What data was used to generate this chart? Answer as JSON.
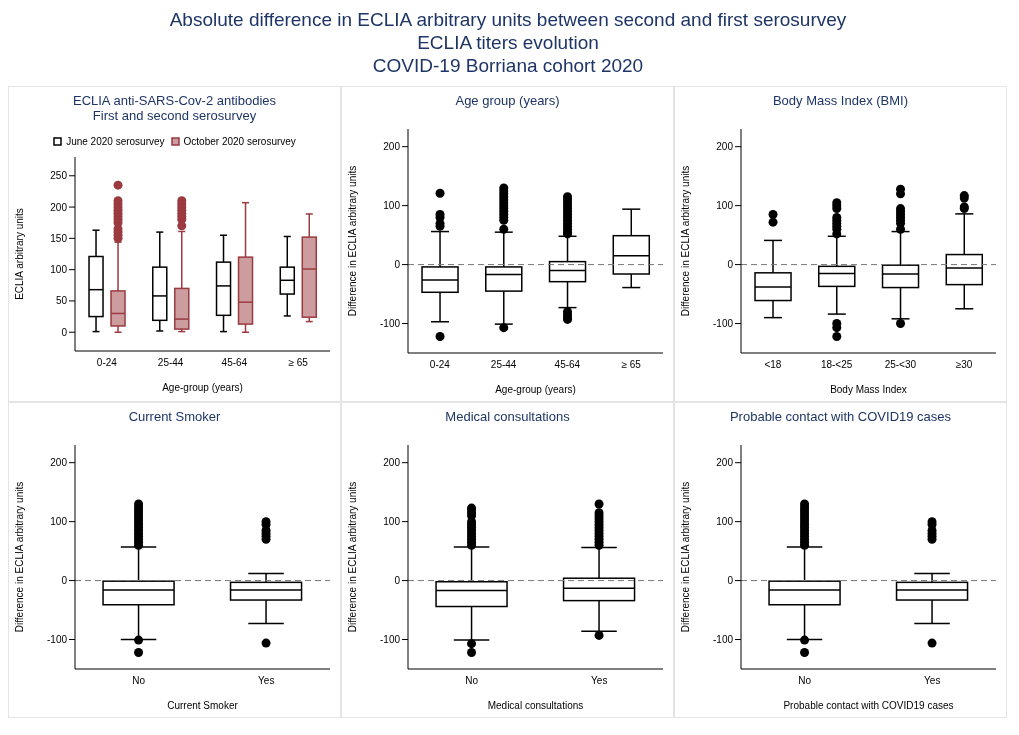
{
  "chart_data": [
    {
      "type": "box",
      "title": "ECLIA anti-SARS-Cov-2 antibodies",
      "subtitle": "First and second serosurvey",
      "annotations": [
        "Absolute difference in ECLIA arbitrary units between second and first serosurvey",
        "ECLIA titers evolution",
        "COVID-19 Borriana cohort 2020"
      ],
      "xlabel": "Age-group (years)",
      "ylabel": "ECLIA arbitrary units",
      "categories": [
        "0-24",
        "25-44",
        "45-64",
        "≥ 65"
      ],
      "ylim": [
        -30,
        280
      ],
      "yticks": [
        0,
        50,
        100,
        150,
        200,
        250
      ],
      "legend": "top",
      "grid": false,
      "series": [
        {
          "name": "June 2020 serosurvey",
          "color": "#000000",
          "boxes": [
            {
              "low": 1,
              "q1": 25,
              "median": 68,
              "q3": 121,
              "high": 163
            },
            {
              "low": 2,
              "q1": 19,
              "median": 58,
              "q3": 104,
              "high": 160
            },
            {
              "low": 1,
              "q1": 27,
              "median": 74,
              "q3": 112,
              "high": 155
            },
            {
              "low": 26,
              "q1": 61,
              "median": 83,
              "q3": 104,
              "high": 153
            }
          ]
        },
        {
          "name": "October 2020 serosurvey",
          "color": "#9b3a40",
          "boxes": [
            {
              "low": 0,
              "q1": 10,
              "median": 30,
              "q3": 66,
              "high": 144,
              "outliers": [
                150,
                155,
                160,
                165,
                175,
                180,
                185,
                190,
                195,
                200,
                205,
                210,
                235
              ]
            },
            {
              "low": 1,
              "q1": 5,
              "median": 21,
              "q3": 70,
              "high": 161,
              "outliers": [
                170,
                180,
                185,
                190,
                195,
                200,
                205,
                210
              ]
            },
            {
              "low": 0,
              "q1": 13,
              "median": 48,
              "q3": 120,
              "high": 207
            },
            {
              "low": 17,
              "q1": 24,
              "median": 101,
              "q3": 152,
              "high": 189
            }
          ]
        }
      ]
    },
    {
      "type": "box",
      "title": "Age group (years)",
      "xlabel": "Age-group (years)",
      "ylabel": "Difference in ECLIA arbitrary units",
      "categories": [
        "0-24",
        "25-44",
        "45-64",
        "≥ 65"
      ],
      "ylim": [
        -150,
        230
      ],
      "yticks": [
        -100,
        0,
        100,
        200
      ],
      "grid": false,
      "ref_lines": [
        {
          "axis": "y",
          "value": 0,
          "line_style": "dashed"
        }
      ],
      "series": [
        {
          "color": "#000000",
          "boxes": [
            {
              "low": -97,
              "q1": -47,
              "median": -26,
              "q3": -4,
              "high": 56,
              "outliers": [
                65,
                70,
                80,
                85,
                121,
                -122
              ]
            },
            {
              "low": -101,
              "q1": -45,
              "median": -17,
              "q3": -4,
              "high": 55,
              "outliers": [
                60,
                75,
                80,
                85,
                90,
                95,
                100,
                105,
                110,
                115,
                120,
                125,
                130,
                -107
              ]
            },
            {
              "low": -73,
              "q1": -29,
              "median": -10,
              "q3": 5,
              "high": 48,
              "outliers": [
                52,
                55,
                60,
                65,
                70,
                75,
                80,
                85,
                90,
                95,
                100,
                105,
                110,
                115,
                -80,
                -85,
                -90,
                -93
              ]
            },
            {
              "low": -39,
              "q1": -16,
              "median": 15,
              "q3": 49,
              "high": 94
            }
          ]
        }
      ]
    },
    {
      "type": "box",
      "title": "Body Mass Index (BMI)",
      "xlabel": "Body Mass Index",
      "ylabel": "Difference in ECLIA arbitrary units",
      "categories": [
        "<18",
        "18-<25",
        "25-<30",
        "≥30"
      ],
      "ylim": [
        -150,
        230
      ],
      "yticks": [
        -100,
        0,
        100,
        200
      ],
      "grid": false,
      "ref_lines": [
        {
          "axis": "y",
          "value": 0,
          "line_style": "dashed"
        }
      ],
      "series": [
        {
          "color": "#000000",
          "boxes": [
            {
              "low": -90,
              "q1": -61,
              "median": -38,
              "q3": -14,
              "high": 41,
              "outliers": [
                72,
                85
              ]
            },
            {
              "low": -84,
              "q1": -37,
              "median": -15,
              "q3": -3,
              "high": 48,
              "outliers": [
                52,
                60,
                65,
                70,
                75,
                80,
                95,
                100,
                105,
                -100,
                -107,
                -122
              ]
            },
            {
              "low": -92,
              "q1": -39,
              "median": -16,
              "q3": -1,
              "high": 56,
              "outliers": [
                60,
                70,
                75,
                80,
                85,
                90,
                95,
                120,
                128,
                -100
              ]
            },
            {
              "low": -75,
              "q1": -34,
              "median": -6,
              "q3": 17,
              "high": 86,
              "outliers": [
                95,
                98,
                113,
                117
              ]
            }
          ]
        }
      ]
    },
    {
      "type": "box",
      "title": "Current Smoker",
      "xlabel": "Current Smoker",
      "ylabel": "Difference in ECLIA arbitrary units",
      "categories": [
        "No",
        "Yes"
      ],
      "ylim": [
        -150,
        230
      ],
      "yticks": [
        -100,
        0,
        100,
        200
      ],
      "grid": false,
      "ref_lines": [
        {
          "axis": "y",
          "value": 0,
          "line_style": "dashed"
        }
      ],
      "series": [
        {
          "color": "#000000",
          "boxes": [
            {
              "low": -100,
              "q1": -41,
              "median": -16,
              "q3": -1,
              "high": 57,
              "outliers": [
                60,
                65,
                70,
                75,
                80,
                85,
                90,
                95,
                100,
                105,
                110,
                115,
                120,
                125,
                130,
                -101,
                -122
              ]
            },
            {
              "low": -73,
              "q1": -33,
              "median": -16,
              "q3": -3,
              "high": 12,
              "outliers": [
                70,
                75,
                80,
                85,
                95,
                100,
                -106
              ]
            }
          ]
        }
      ]
    },
    {
      "type": "box",
      "title": "Medical consultations",
      "xlabel": "Medical consultations",
      "ylabel": "Difference in ECLIA arbitrary units",
      "categories": [
        "No",
        "Yes"
      ],
      "ylim": [
        -150,
        230
      ],
      "yticks": [
        -100,
        0,
        100,
        200
      ],
      "grid": false,
      "ref_lines": [
        {
          "axis": "y",
          "value": 0,
          "line_style": "dashed"
        }
      ],
      "series": [
        {
          "color": "#000000",
          "boxes": [
            {
              "low": -101,
              "q1": -44,
              "median": -17,
              "q3": -2,
              "high": 57,
              "outliers": [
                60,
                65,
                70,
                75,
                80,
                85,
                90,
                95,
                100,
                110,
                115,
                120,
                123,
                -107,
                -122
              ]
            },
            {
              "low": -86,
              "q1": -34,
              "median": -13,
              "q3": 4,
              "high": 56,
              "outliers": [
                60,
                65,
                70,
                75,
                80,
                85,
                90,
                95,
                100,
                105,
                110,
                115,
                130,
                -93
              ]
            }
          ]
        }
      ]
    },
    {
      "type": "box",
      "title": "Probable contact with COVID19 cases",
      "xlabel": "Probable contact with COVID19 cases",
      "ylabel": "Difference in ECLIA arbitrary units",
      "categories": [
        "No",
        "Yes"
      ],
      "ylim": [
        -150,
        230
      ],
      "yticks": [
        -100,
        0,
        100,
        200
      ],
      "grid": false,
      "ref_lines": [
        {
          "axis": "y",
          "value": 0,
          "line_style": "dashed"
        }
      ],
      "series": [
        {
          "color": "#000000",
          "boxes": [
            {
              "low": -100,
              "q1": -41,
              "median": -16,
              "q3": -1,
              "high": 57,
              "outliers": [
                60,
                65,
                70,
                75,
                80,
                85,
                90,
                95,
                100,
                105,
                110,
                115,
                120,
                125,
                130,
                -101,
                -122
              ]
            },
            {
              "low": -73,
              "q1": -33,
              "median": -16,
              "q3": -3,
              "high": 12,
              "outliers": [
                70,
                75,
                80,
                85,
                95,
                100,
                -106
              ]
            }
          ]
        }
      ]
    }
  ]
}
